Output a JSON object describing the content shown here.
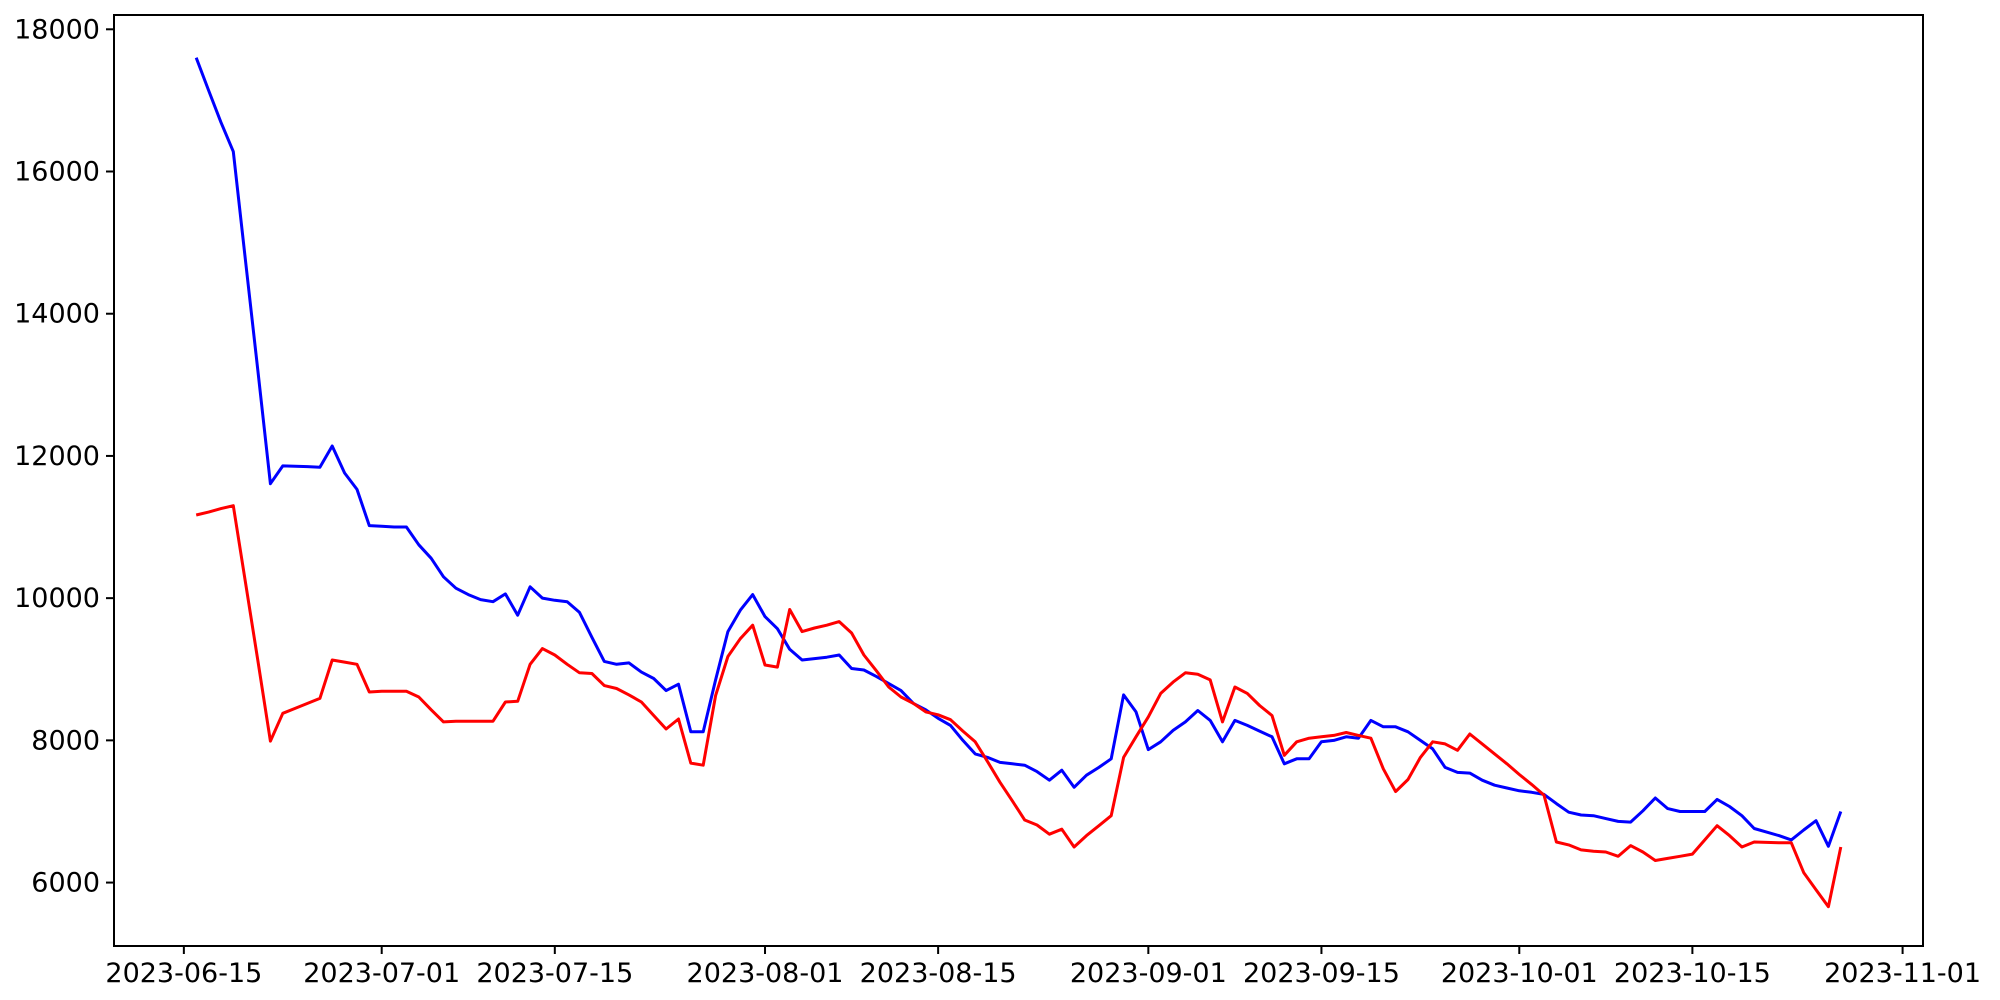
{
  "chart_data": {
    "type": "line",
    "title": "",
    "xlabel": "",
    "ylabel": "",
    "legend": "none",
    "grid": false,
    "background_color": "#ffffff",
    "spine_color": "#000000",
    "tick_label_color": "#000000",
    "x_start_date": "2023-06-16",
    "x_end_date": "2023-10-27",
    "frequency": "daily",
    "n_points": 134,
    "x_margin_days": 6.65,
    "ylim": [
      5108,
      18201
    ],
    "y_tick_values": [
      6000,
      8000,
      10000,
      12000,
      14000,
      16000,
      18000
    ],
    "x_tick_labels": [
      "2023-06-15",
      "2023-07-01",
      "2023-07-15",
      "2023-08-01",
      "2023-08-15",
      "2023-09-01",
      "2023-09-15",
      "2023-10-01",
      "2023-10-15",
      "2023-11-01"
    ],
    "series": [
      {
        "name": "blue-series",
        "color": "#0000ff",
        "values": [
          17600,
          17140,
          16690,
          16280,
          14720,
          13170,
          11610,
          11860,
          11855,
          11850,
          11840,
          12140,
          11760,
          11530,
          11020,
          11010,
          11000,
          11000,
          10750,
          10560,
          10300,
          10140,
          10050,
          9980,
          9950,
          10060,
          9760,
          10160,
          10000,
          9970,
          9950,
          9800,
          9450,
          9110,
          9070,
          9090,
          8960,
          8870,
          8700,
          8790,
          8120,
          8120,
          8850,
          9530,
          9830,
          10050,
          9740,
          9570,
          9280,
          9130,
          9150,
          9170,
          9200,
          9010,
          8990,
          8900,
          8800,
          8700,
          8520,
          8430,
          8310,
          8210,
          8000,
          7810,
          7760,
          7690,
          7670,
          7650,
          7560,
          7440,
          7580,
          7340,
          7510,
          7620,
          7740,
          8640,
          8400,
          7870,
          7980,
          8140,
          8260,
          8420,
          8280,
          7980,
          8280,
          8210,
          8130,
          8050,
          7670,
          7740,
          7740,
          7980,
          8000,
          8050,
          8030,
          8280,
          8190,
          8190,
          8120,
          8000,
          7880,
          7620,
          7550,
          7540,
          7440,
          7370,
          7330,
          7290,
          7270,
          7240,
          7110,
          6990,
          6950,
          6940,
          6900,
          6860,
          6850,
          7010,
          7190,
          7040,
          7000,
          7000,
          7000,
          7170,
          7070,
          6940,
          6760,
          6710,
          6660,
          6600,
          6740,
          6870,
          6510,
          7000
        ]
      },
      {
        "name": "red-series",
        "color": "#ff0000",
        "values": [
          11170,
          11210,
          11260,
          11300,
          10200,
          9100,
          7990,
          8380,
          8450,
          8520,
          8590,
          9130,
          9100,
          9070,
          8680,
          8690,
          8690,
          8690,
          8610,
          8430,
          8260,
          8270,
          8270,
          8270,
          8270,
          8540,
          8550,
          9070,
          9290,
          9200,
          9070,
          8950,
          8940,
          8770,
          8730,
          8640,
          8540,
          8350,
          8160,
          8300,
          7680,
          7650,
          8630,
          9180,
          9430,
          9620,
          9060,
          9030,
          9840,
          9530,
          9580,
          9620,
          9670,
          9510,
          9200,
          8980,
          8750,
          8610,
          8520,
          8400,
          8360,
          8290,
          8130,
          7980,
          7700,
          7410,
          7150,
          6880,
          6810,
          6680,
          6750,
          6500,
          6660,
          6800,
          6940,
          7760,
          8050,
          8330,
          8660,
          8820,
          8950,
          8930,
          8850,
          8260,
          8750,
          8660,
          8490,
          8350,
          7790,
          7980,
          8030,
          8050,
          8070,
          8110,
          8070,
          8030,
          7600,
          7280,
          7450,
          7760,
          7980,
          7950,
          7860,
          8090,
          7950,
          7810,
          7670,
          7520,
          7380,
          7230,
          6570,
          6530,
          6460,
          6440,
          6430,
          6370,
          6520,
          6430,
          6310,
          6340,
          6370,
          6400,
          6600,
          6800,
          6660,
          6500,
          6570,
          6565,
          6560,
          6560,
          6140,
          5900,
          5660,
          6500
        ]
      }
    ]
  }
}
